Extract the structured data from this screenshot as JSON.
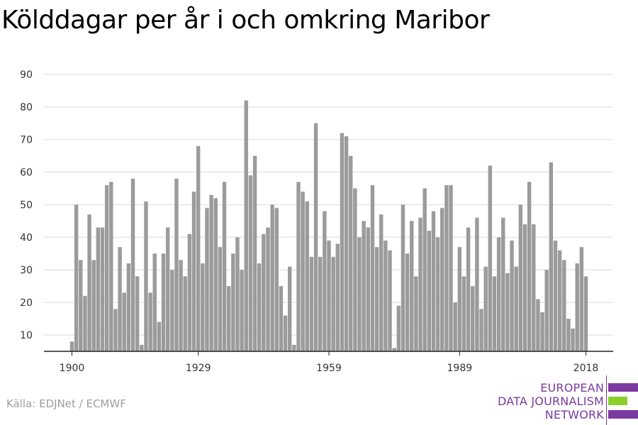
{
  "chart_data": {
    "type": "bar",
    "title": "Kölddagar per år i och omkring Maribor",
    "xlabel": "",
    "ylabel": "",
    "ylim": [
      5,
      90
    ],
    "yticks": [
      10,
      20,
      30,
      40,
      50,
      60,
      70,
      80,
      90
    ],
    "xticks": [
      1900,
      1929,
      1959,
      1989,
      2018
    ],
    "grid": true,
    "bar_color": "#9b9b9b",
    "x": [
      1900,
      1901,
      1902,
      1903,
      1904,
      1905,
      1906,
      1907,
      1908,
      1909,
      1910,
      1911,
      1912,
      1913,
      1914,
      1915,
      1916,
      1917,
      1918,
      1919,
      1920,
      1921,
      1922,
      1923,
      1924,
      1925,
      1926,
      1927,
      1928,
      1929,
      1930,
      1931,
      1932,
      1933,
      1934,
      1935,
      1936,
      1937,
      1938,
      1939,
      1940,
      1941,
      1942,
      1943,
      1944,
      1945,
      1946,
      1947,
      1948,
      1949,
      1950,
      1951,
      1952,
      1953,
      1954,
      1955,
      1956,
      1957,
      1958,
      1959,
      1960,
      1961,
      1962,
      1963,
      1964,
      1965,
      1966,
      1967,
      1968,
      1969,
      1970,
      1971,
      1972,
      1973,
      1974,
      1975,
      1976,
      1977,
      1978,
      1979,
      1980,
      1981,
      1982,
      1983,
      1984,
      1985,
      1986,
      1987,
      1988,
      1989,
      1990,
      1991,
      1992,
      1993,
      1994,
      1995,
      1996,
      1997,
      1998,
      1999,
      2000,
      2001,
      2002,
      2003,
      2004,
      2005,
      2006,
      2007,
      2008,
      2009,
      2010,
      2011,
      2012,
      2013,
      2014,
      2015,
      2016,
      2017,
      2018
    ],
    "values": [
      8,
      50,
      33,
      22,
      47,
      33,
      43,
      43,
      56,
      57,
      18,
      37,
      23,
      32,
      58,
      28,
      7,
      51,
      23,
      35,
      14,
      35,
      43,
      30,
      58,
      33,
      28,
      41,
      54,
      68,
      32,
      49,
      53,
      52,
      37,
      57,
      25,
      35,
      40,
      30,
      82,
      59,
      65,
      32,
      41,
      43,
      50,
      49,
      25,
      16,
      31,
      7,
      57,
      54,
      51,
      34,
      75,
      34,
      48,
      39,
      34,
      38,
      72,
      71,
      65,
      55,
      40,
      45,
      43,
      56,
      37,
      47,
      39,
      36,
      6,
      19,
      50,
      35,
      45,
      28,
      46,
      55,
      42,
      48,
      40,
      49,
      56,
      56,
      20,
      37,
      28,
      43,
      25,
      46,
      18,
      31,
      62,
      28,
      40,
      46,
      29,
      39,
      31,
      50,
      44,
      57,
      44,
      21,
      17,
      30,
      63,
      39,
      36,
      33,
      15,
      12,
      32,
      37,
      28
    ]
  },
  "source": "Källa: EDJNet / ECMWF",
  "logo": {
    "line1": "EUROPEAN",
    "line2": "DATA JOURNALISM",
    "line3": "NETWORK",
    "purple": "#7b3aa0",
    "green": "#8ccf2a"
  }
}
